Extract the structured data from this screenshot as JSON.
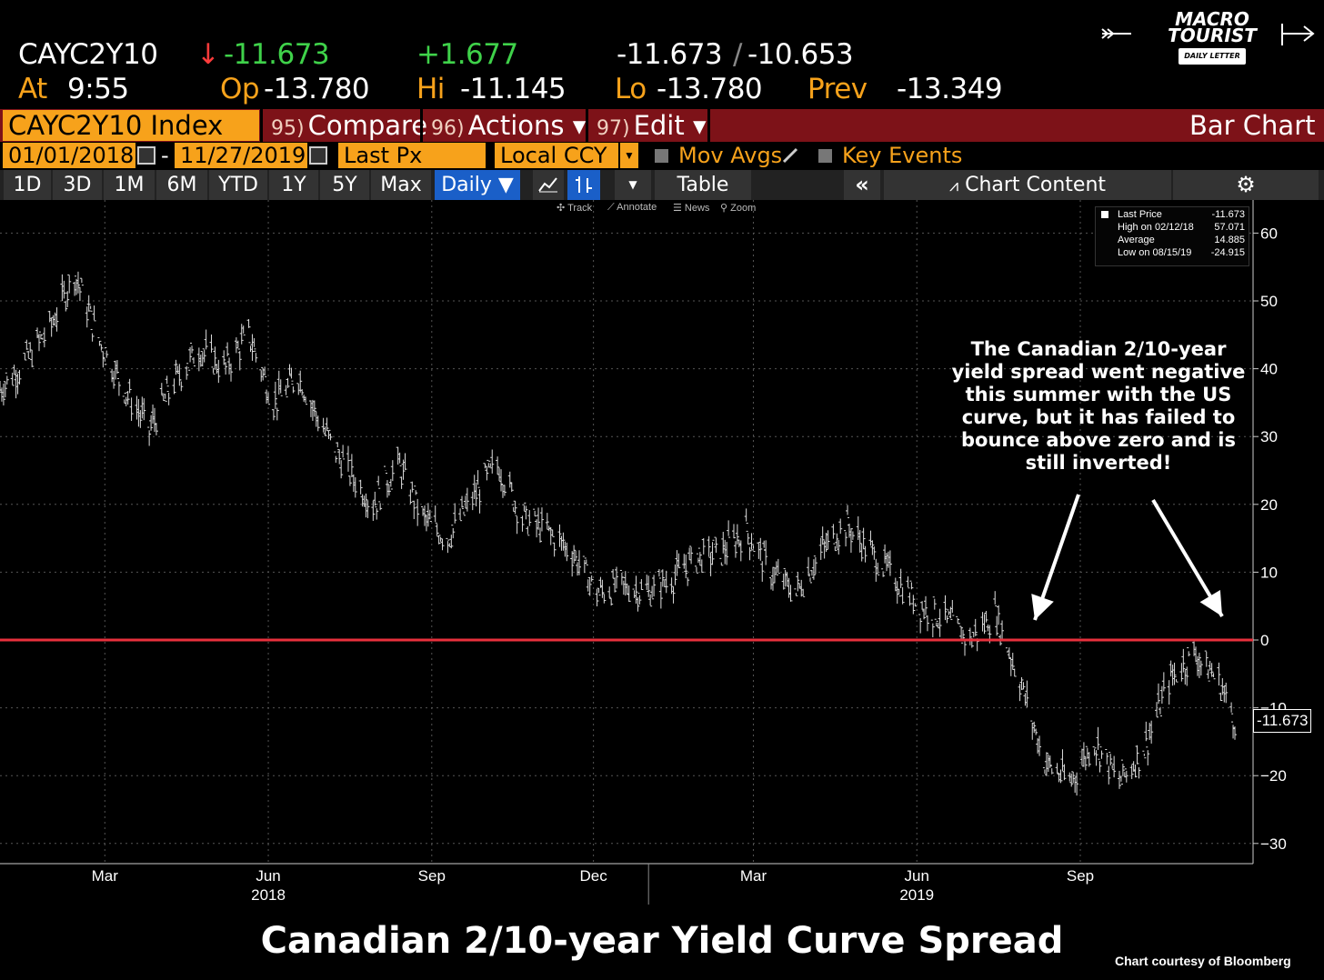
{
  "ticker": {
    "symbol": "CAYC2Y10",
    "arrow": "↓",
    "last": "-11.673",
    "change": "+1.677",
    "bid_ask": "-11.673",
    "sep": "/",
    "ask": "-10.653",
    "at_label": "At",
    "time": "9:55",
    "op_label": "Op",
    "op": "-13.780",
    "hi_label": "Hi",
    "hi": "-11.145",
    "lo_label": "Lo",
    "lo": "-13.780",
    "prev_label": "Prev",
    "prev": "-13.349"
  },
  "logo": {
    "line1": "MACRO",
    "line2": "TOURIST",
    "sub": "DAILY LETTER"
  },
  "function_bar": {
    "index": "CAYC2Y10 Index",
    "compare_num": "95)",
    "compare": "Compare",
    "actions_num": "96)",
    "actions": "Actions ▾",
    "edit_num": "97)",
    "edit": "Edit ▾",
    "view": "Bar Chart"
  },
  "controls": {
    "start_date": "01/01/2018",
    "dash": "-",
    "end_date": "11/27/2019",
    "field": "Last Px",
    "currency": "Local CCY",
    "mov_avgs": "Mov Avgs",
    "key_events": "Key Events"
  },
  "periods": [
    "1D",
    "3D",
    "1M",
    "6M",
    "YTD",
    "1Y",
    "5Y",
    "Max"
  ],
  "frequency": "Daily ▼",
  "table_label": "Table",
  "chart_content_label": "Chart Content",
  "toolbar_mini": {
    "track": "Track",
    "annotate": "Annotate",
    "news": "News",
    "zoom": "Zoom"
  },
  "stats_box": {
    "rows": [
      {
        "label": "Last Price",
        "value": "-11.673"
      },
      {
        "label": "High on 02/12/18",
        "value": "57.071"
      },
      {
        "label": "Average",
        "value": "14.885"
      },
      {
        "label": "Low on 08/15/19",
        "value": "-24.915"
      }
    ]
  },
  "annotation": "The Canadian 2/10-year yield spread went negative this summer with the US curve, but it has failed to bounce above zero and is still inverted!",
  "price_label": "-11.673",
  "caption": "Canadian 2/10-year Yield Curve Spread",
  "credit": "Chart courtesy of Bloomberg",
  "colors": {
    "accent": "#f7a21b",
    "function_bar": "#7d1218",
    "zero_line": "#e8303c",
    "up": "#3fd24a",
    "down": "#ff3b3b"
  },
  "chart_data": {
    "type": "bar",
    "title": "Canadian 2/10-year Yield Curve Spread",
    "x_tick_labels": [
      "Mar",
      "Jun",
      "Sep",
      "Dec",
      "Mar",
      "Jun",
      "Sep"
    ],
    "x_year_labels": [
      "2018",
      "2019"
    ],
    "y_tick_labels": [
      "60",
      "50",
      "40",
      "30",
      "20",
      "10",
      "0",
      "-10",
      "-20",
      "-30"
    ],
    "ylim": [
      -33,
      64
    ],
    "xlim": [
      "2018-01-01",
      "2019-11-27"
    ],
    "grid": true,
    "reference_line": 0,
    "series": [
      {
        "x": [
          "2018-01-01",
          "2018-01-15",
          "2018-01-29",
          "2018-02-12",
          "2018-02-26",
          "2018-03-12",
          "2018-03-26",
          "2018-04-09",
          "2018-04-23",
          "2018-05-07",
          "2018-05-21",
          "2018-06-04",
          "2018-06-18",
          "2018-07-02",
          "2018-07-16",
          "2018-07-30",
          "2018-08-13",
          "2018-08-27",
          "2018-09-10",
          "2018-09-24",
          "2018-10-08",
          "2018-10-22",
          "2018-11-05",
          "2018-11-19",
          "2018-12-03",
          "2018-12-17",
          "2018-12-31",
          "2019-01-14",
          "2019-01-28",
          "2019-02-11",
          "2019-02-25",
          "2019-03-11",
          "2019-03-25",
          "2019-04-08",
          "2019-04-22",
          "2019-05-06",
          "2019-05-20",
          "2019-06-03",
          "2019-06-17",
          "2019-07-01",
          "2019-07-15",
          "2019-07-29",
          "2019-08-12",
          "2019-08-26",
          "2019-09-09",
          "2019-09-23",
          "2019-10-07",
          "2019-10-21",
          "2019-11-04",
          "2019-11-18",
          "2019-11-27"
        ],
        "values": [
          37,
          41,
          46,
          54,
          44,
          37,
          31,
          38,
          43,
          40,
          45,
          35,
          39,
          31,
          25,
          20,
          26,
          18,
          15,
          21,
          26,
          18,
          16,
          13,
          7,
          8,
          7,
          9,
          12,
          13,
          16,
          10,
          7,
          13,
          17,
          13,
          9,
          5,
          3,
          0,
          4,
          -6,
          -18,
          -21,
          -15,
          -21,
          -16,
          -6,
          -2,
          -6,
          -11.673
        ]
      }
    ]
  }
}
